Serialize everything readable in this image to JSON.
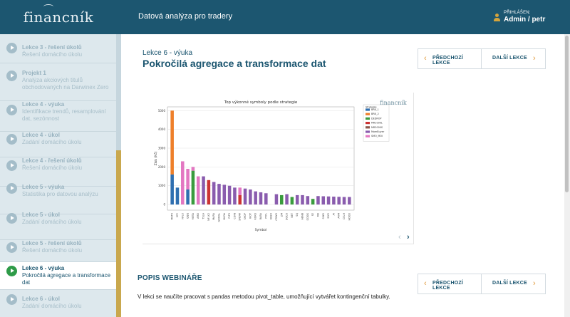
{
  "header": {
    "logo_text": "financník",
    "title": "Datová analýza pro tradery",
    "user_label": "PŘIHLÁŠEN:",
    "user_name": "Admin / petr"
  },
  "sidebar": {
    "items": [
      {
        "title": "Lekce 3 - řešení úkolů",
        "subtitle": "Řešení domácího úkolu"
      },
      {
        "title": "Projekt 1",
        "subtitle": "Analýza akciových titulů obchodovaných na Darwinex Zero"
      },
      {
        "title": "Lekce 4 - výuka",
        "subtitle": "Identifikace trendů, resamplování dat, sezónnost"
      },
      {
        "title": "Lekce 4 - úkol",
        "subtitle": "Zadání domácího úkolu"
      },
      {
        "title": "Lekce 4 - řešení úkolů",
        "subtitle": "Řešení domácího úkolu"
      },
      {
        "title": "Lekce 5 - výuka",
        "subtitle": "Statistika pro datovou analýzu"
      },
      {
        "title": "Lekce 5 - úkol",
        "subtitle": "Zadání domácího úkolu"
      },
      {
        "title": "Lekce 5 - řešení úkolů",
        "subtitle": "Řešení domácího úkolu"
      },
      {
        "title": "Lekce 6 - výuka",
        "subtitle": "Pokročilá agregace a transformace dat",
        "active": true
      },
      {
        "title": "Lekce 6 - úkol",
        "subtitle": "Zadání domácího úkolu"
      }
    ]
  },
  "lesson": {
    "label": "Lekce 6 - výuka",
    "title": "Pokročilá agregace a transformace dat"
  },
  "nav": {
    "prev_label": "PŘEDCHOZÍ LEKCE",
    "next_label": "DALŠÍ LEKCE"
  },
  "section": {
    "title": "POPIS WEBINÁŘE",
    "description": "V lekci se naučíte pracovat s pandas metodou pivot_table, umožňující vytvářet kontingenční tabulky."
  },
  "colors": {
    "header_bg": "#1c5670",
    "accent_gold": "#c9a84e",
    "chevron": "#e19a3c",
    "active_play": "#2e9b48"
  },
  "chart_data": {
    "type": "bar",
    "stacked": true,
    "title": "Top výkonné symboly podle strategie",
    "xlabel": "Symbol",
    "ylabel": "Zisk (Kč)",
    "ylim": [
      -300,
      5200
    ],
    "yticks": [
      0,
      1000,
      2000,
      3000,
      4000,
      5000
    ],
    "watermark": "financník",
    "categories": [
      "MSTR",
      "SPY",
      "NFLX",
      "QQQ",
      "META",
      "AMD",
      "TSLA",
      "NFLX2",
      "MARA",
      "GOOGL",
      "NVDA",
      "PLTR",
      "COIN",
      "SNOW",
      "SHOP",
      "RIOT",
      "ROKU",
      "BABA",
      "PYPL",
      "UBER",
      "CRWD",
      "ZM",
      "DOCU",
      "NET",
      "SQ",
      "ABNB",
      "DDOG",
      "SE",
      "MU",
      "SMCI",
      "SOFI",
      "AI",
      "ARM",
      "CELH",
      "HOOD"
    ],
    "series": [
      {
        "name": "BRK_1",
        "color": "#2f6fb0",
        "values": [
          1600,
          900,
          0,
          800,
          0,
          0,
          0,
          0,
          0,
          0,
          0,
          0,
          0,
          0,
          0,
          0,
          0,
          0,
          0,
          0,
          0,
          0,
          0,
          0,
          0,
          0,
          0,
          0,
          0,
          0,
          0,
          0,
          0,
          0,
          0
        ]
      },
      {
        "name": "BRK_2",
        "color": "#ee7f2a",
        "values": [
          3400,
          0,
          0,
          0,
          0,
          0,
          0,
          0,
          0,
          0,
          0,
          0,
          0,
          0,
          0,
          0,
          0,
          0,
          0,
          0,
          0,
          0,
          0,
          0,
          0,
          0,
          0,
          0,
          0,
          0,
          0,
          0,
          0,
          0,
          0
        ]
      },
      {
        "name": "DEDROP",
        "color": "#3a9b3e",
        "values": [
          0,
          0,
          0,
          0,
          1800,
          0,
          0,
          0,
          0,
          0,
          0,
          0,
          0,
          0,
          0,
          0,
          0,
          0,
          0,
          0,
          0,
          500,
          0,
          400,
          0,
          0,
          0,
          300,
          0,
          0,
          0,
          0,
          0,
          0,
          0
        ]
      },
      {
        "name": "MR1000L",
        "color": "#cc3333",
        "values": [
          0,
          0,
          0,
          0,
          0,
          0,
          0,
          1300,
          0,
          0,
          0,
          0,
          0,
          500,
          0,
          0,
          0,
          0,
          0,
          0,
          0,
          0,
          0,
          0,
          0,
          0,
          0,
          0,
          0,
          0,
          0,
          0,
          0,
          0,
          0
        ]
      },
      {
        "name": "MR3000S",
        "color": "#8c564b",
        "values": [
          0,
          0,
          0,
          0,
          0,
          0,
          0,
          0,
          0,
          0,
          0,
          0,
          0,
          0,
          0,
          0,
          0,
          0,
          0,
          0,
          0,
          0,
          0,
          0,
          0,
          0,
          0,
          0,
          0,
          0,
          0,
          0,
          0,
          0,
          0
        ]
      },
      {
        "name": "MomBuyer",
        "color": "#8a5cae",
        "values": [
          0,
          0,
          0,
          0,
          0,
          0,
          1500,
          0,
          1200,
          1100,
          1050,
          1000,
          900,
          0,
          850,
          800,
          700,
          650,
          600,
          0,
          550,
          0,
          550,
          0,
          500,
          500,
          450,
          0,
          450,
          440,
          430,
          420,
          410,
          400,
          400
        ]
      },
      {
        "name": "SMO_MOI",
        "color": "#e377c2",
        "values": [
          0,
          0,
          2300,
          1100,
          200,
          1500,
          0,
          0,
          0,
          0,
          0,
          0,
          0,
          400,
          0,
          0,
          0,
          0,
          0,
          0,
          0,
          0,
          0,
          0,
          0,
          0,
          0,
          0,
          0,
          0,
          0,
          0,
          0,
          0,
          0
        ]
      }
    ]
  }
}
